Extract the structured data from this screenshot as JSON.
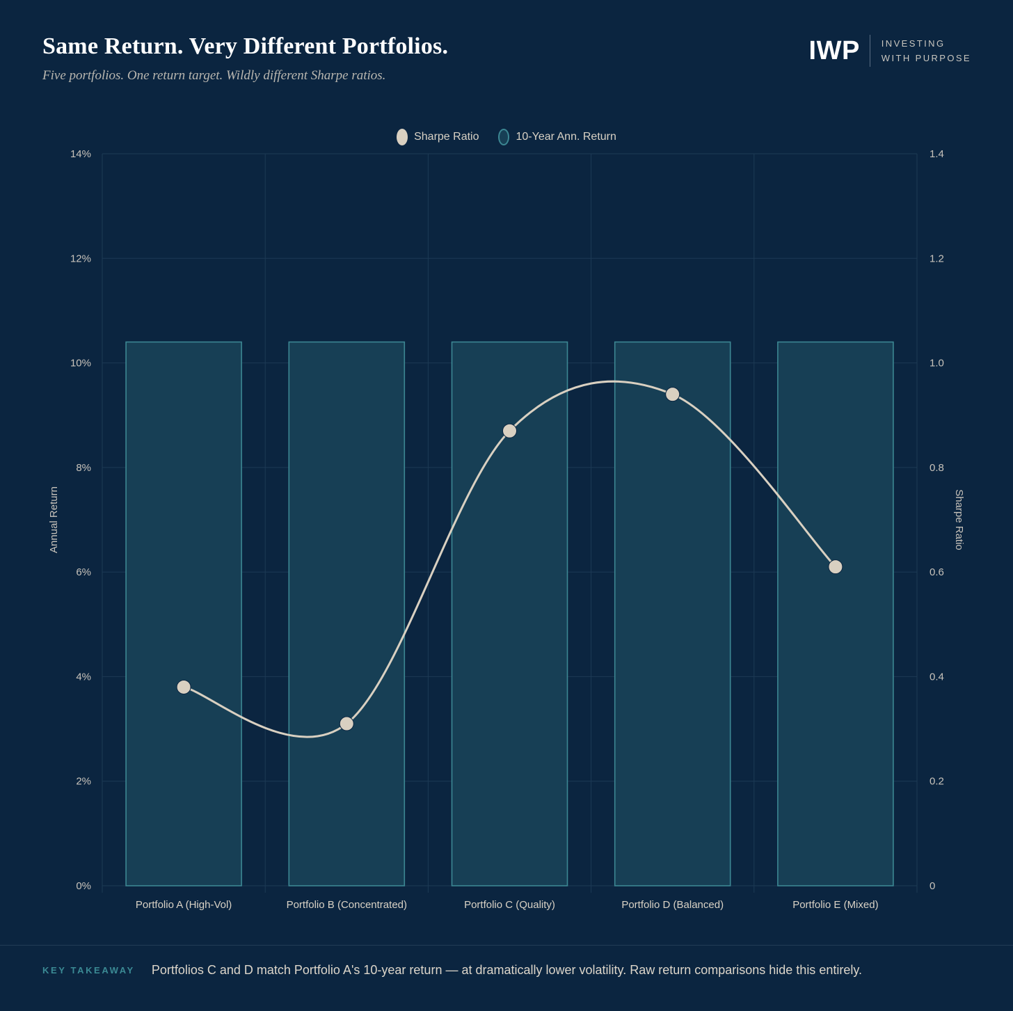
{
  "header": {
    "title": "Same Return. Very Different Portfolios.",
    "subtitle": "Five portfolios. One return target. Wildly different Sharpe ratios."
  },
  "logo": {
    "mark": "IWP",
    "line1": "INVESTING",
    "line2": "WITH PURPOSE"
  },
  "legend": {
    "sharpe_label": "Sharpe Ratio",
    "return_label": "10-Year Ann. Return"
  },
  "colors": {
    "background": "#0b2540",
    "bar_fill": "#173f55",
    "bar_stroke": "#3c8793",
    "line": "#d9d0c1",
    "grid": "#1d3a55",
    "accent": "#3b8a94"
  },
  "chart_data": {
    "type": "bar",
    "categories": [
      "Portfolio A (High-Vol)",
      "Portfolio B (Concentrated)",
      "Portfolio C (Quality)",
      "Portfolio D (Balanced)",
      "Portfolio E (Mixed)"
    ],
    "series": [
      {
        "name": "10-Year Ann. Return",
        "type": "bar",
        "axis": "left",
        "values": [
          10.4,
          10.4,
          10.4,
          10.4,
          10.4
        ]
      },
      {
        "name": "Sharpe Ratio",
        "type": "line",
        "axis": "right",
        "smooth": true,
        "values": [
          0.38,
          0.31,
          0.87,
          0.94,
          0.61
        ]
      }
    ],
    "ylabel": "Annual Return",
    "y2label": "Sharpe Ratio",
    "ylim": [
      0,
      14
    ],
    "y2lim": [
      0,
      1.4
    ],
    "yticks": [
      "0%",
      "2%",
      "4%",
      "6%",
      "8%",
      "10%",
      "12%",
      "14%"
    ],
    "y2ticks": [
      "0",
      "0.2",
      "0.4",
      "0.6",
      "0.8",
      "1.0",
      "1.2",
      "1.4"
    ],
    "grid": true,
    "legend_position": "top-center"
  },
  "footer": {
    "label": "KEY TAKEAWAY",
    "text": "Portfolios C and D match Portfolio A's 10-year return — at dramatically lower volatility. Raw return comparisons hide this entirely."
  }
}
